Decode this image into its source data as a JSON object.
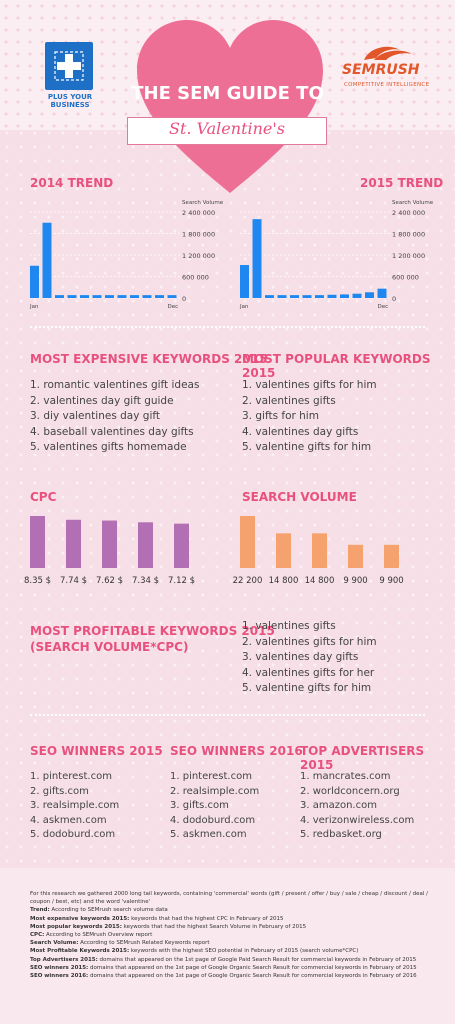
{
  "header": {
    "left_logo_text": "PLUS YOUR BUSINESS",
    "right_logo": "SEMRUSH",
    "right_logo_sub": "COMPETITIVE INTELLIGENCE",
    "title": "THE SEM GUIDE TO",
    "subtitle": "St. Valentine's"
  },
  "colors": {
    "pink": "#e8517f",
    "blue": "#1e88f0",
    "purple": "#b36fb3",
    "orange": "#f6a26e"
  },
  "trend_2014": {
    "title": "2014 TREND",
    "chart_data": {
      "type": "bar",
      "categories": [
        "Jan",
        "Feb",
        "Mar",
        "Apr",
        "May",
        "Jun",
        "Jul",
        "Aug",
        "Sep",
        "Oct",
        "Nov",
        "Dec"
      ],
      "x_labels_shown": [
        "Jan",
        "Dec"
      ],
      "values": [
        900000,
        2100000,
        80000,
        80000,
        80000,
        80000,
        80000,
        80000,
        80000,
        80000,
        80000,
        80000
      ],
      "ylabel": "Search Volume",
      "yticks": [
        "2 400 000",
        "1 800 000",
        "1 200 000",
        "600 000",
        "0"
      ],
      "ylim": [
        0,
        2400000
      ]
    }
  },
  "trend_2015": {
    "title": "2015 TREND",
    "chart_data": {
      "type": "bar",
      "categories": [
        "Jan",
        "Feb",
        "Mar",
        "Apr",
        "May",
        "Jun",
        "Jul",
        "Aug",
        "Sep",
        "Oct",
        "Nov",
        "Dec"
      ],
      "x_labels_shown": [
        "Jan",
        "Dec"
      ],
      "values": [
        920000,
        2200000,
        80000,
        80000,
        80000,
        80000,
        80000,
        90000,
        100000,
        120000,
        160000,
        260000
      ],
      "ylabel": "Search Volume",
      "yticks": [
        "2 400 000",
        "1 800 000",
        "1 200 000",
        "600 000",
        "0"
      ],
      "ylim": [
        0,
        2400000
      ]
    }
  },
  "expensive": {
    "title": "MOST EXPENSIVE KEYWORDS 2015",
    "items": [
      "1. romantic valentines gift ideas",
      "2. valentines day gift guide",
      "3. diy valentines day gift",
      "4. baseball valentines day gifts",
      "5. valentines gifts homemade"
    ]
  },
  "popular": {
    "title": "MOST POPULAR KEYWORDS 2015",
    "items": [
      "1. valentines gifts for him",
      "2. valentines gifts",
      "3. gifts for him",
      "4. valentines day gifts",
      "5. valentine gifts for him"
    ]
  },
  "cpc": {
    "title": "CPC",
    "chart_data": {
      "type": "bar",
      "categories": [
        "1",
        "2",
        "3",
        "4",
        "5"
      ],
      "values": [
        8.35,
        7.74,
        7.62,
        7.34,
        7.12
      ],
      "labels": [
        "8.35 $",
        "7.74 $",
        "7.62 $",
        "7.34 $",
        "7.12 $"
      ]
    }
  },
  "volume": {
    "title": "SEARCH VOLUME",
    "chart_data": {
      "type": "bar",
      "categories": [
        "1",
        "2",
        "3",
        "4",
        "5"
      ],
      "values": [
        22200,
        14800,
        14800,
        9900,
        9900
      ],
      "labels": [
        "22 200",
        "14 800",
        "14 800",
        "9 900",
        "9 900"
      ]
    }
  },
  "profitable": {
    "title_line1": "MOST PROFITABLE KEYWORDS 2015",
    "title_line2": "(SEARCH VOLUME*CPC)",
    "items": [
      "1. valentines gifts",
      "2. valentines gifts for him",
      "3. valentines day gifts",
      "4. valentines gifts for her",
      "5. valentine gifts for him"
    ]
  },
  "seo2015": {
    "title": "SEO WINNERS 2015",
    "items": [
      "1. pinterest.com",
      "2. gifts.com",
      "3. realsimple.com",
      "4. askmen.com",
      "5. dodoburd.com"
    ]
  },
  "seo2016": {
    "title": "SEO WINNERS 2016",
    "items": [
      "1. pinterest.com",
      "2. realsimple.com",
      "3. gifts.com",
      "4. dodoburd.com",
      "5. askmen.com"
    ]
  },
  "advertisers": {
    "title": "TOP ADVERTISERS 2015",
    "items": [
      "1. mancrates.com",
      "2. worldconcern.org",
      "3. amazon.com",
      "4. verizonwireless.com",
      "5. redbasket.org"
    ]
  },
  "notes": {
    "intro": "For this research we gathered 2000 long tail keywords, containing 'commercial' words (gift / present / offer / buy / sale / cheap / discount / deal / coupon / best, etc) and the word 'valentine'",
    "lines": [
      {
        "label": "Trend:",
        "text": " According to SEMrush search volume data"
      },
      {
        "label": "Most expensive keywords 2015:",
        "text": " keywords that had the highest CPC in February of 2015"
      },
      {
        "label": "Most popular keywords 2015:",
        "text": " keywords that had the highest Search Volume in February of 2015"
      },
      {
        "label": "CPC:",
        "text": " According to SEMrush Overview report"
      },
      {
        "label": "Search Volume:",
        "text": " According to SEMrush Related Keywords report"
      },
      {
        "label": "Most Profitable Keywords 2015:",
        "text": " keywords with the highest SEO potential  in February of 2015 (search volume*CPC)"
      },
      {
        "label": "Top Advertisers 2015:",
        "text": " domains that appeared on the 1st page of Google Paid Search Result for commercial keywords in February of 2015"
      },
      {
        "label": "SEO winners 2015:",
        "text": " domains that appeared on the 1st page of Google Organic Search Result for commercial keywords in February of 2015"
      },
      {
        "label": "SEO winners 2016:",
        "text": " domains that appeared on the 1st page of Google Organic Search Result for commercial keywords in February of 2016"
      }
    ]
  }
}
